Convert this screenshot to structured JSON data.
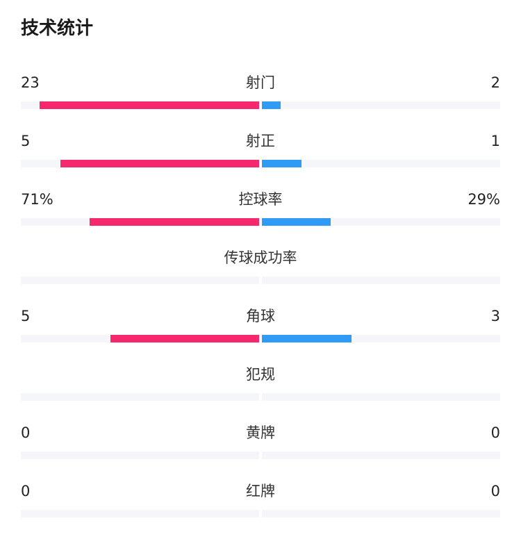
{
  "title": "技术统计",
  "colors": {
    "home": "#f5286e",
    "away": "#2f9bf4",
    "track": "#f4f6f9"
  },
  "stats": [
    {
      "label": "射门",
      "home": "23",
      "away": "2",
      "home_pct": 92,
      "away_pct": 8
    },
    {
      "label": "射正",
      "home": "5",
      "away": "1",
      "home_pct": 83.3,
      "away_pct": 16.7
    },
    {
      "label": "控球率",
      "home": "71%",
      "away": "29%",
      "home_pct": 71,
      "away_pct": 29
    },
    {
      "label": "传球成功率",
      "home": "",
      "away": "",
      "home_pct": 0,
      "away_pct": 0
    },
    {
      "label": "角球",
      "home": "5",
      "away": "3",
      "home_pct": 62.5,
      "away_pct": 37.5
    },
    {
      "label": "犯规",
      "home": "",
      "away": "",
      "home_pct": 0,
      "away_pct": 0
    },
    {
      "label": "黄牌",
      "home": "0",
      "away": "0",
      "home_pct": 0,
      "away_pct": 0
    },
    {
      "label": "红牌",
      "home": "0",
      "away": "0",
      "home_pct": 0,
      "away_pct": 0
    }
  ]
}
